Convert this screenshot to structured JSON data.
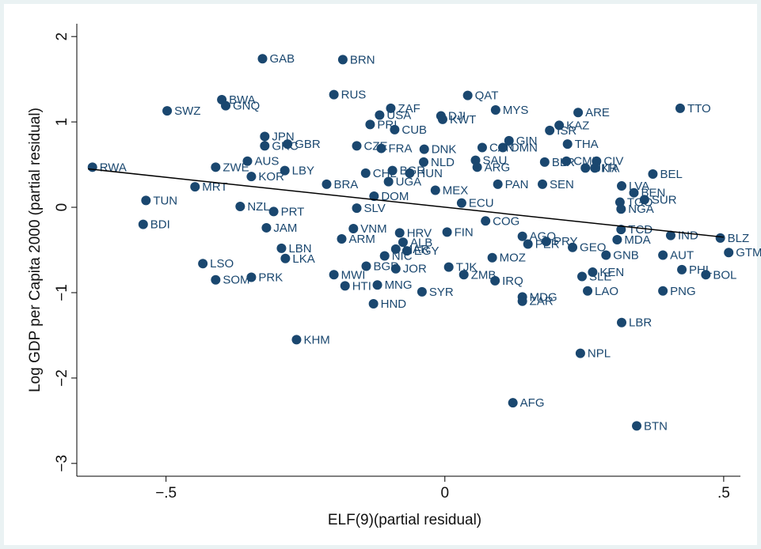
{
  "chart_data": {
    "type": "scatter",
    "xlabel": "ELF(9)(partial residual)",
    "ylabel": "Log GDP per Capita 2000 (partial residual)",
    "xlim": [
      -0.66,
      0.53
    ],
    "ylim": [
      -3.15,
      2.15
    ],
    "xticks": [
      {
        "value": -0.5,
        "label": "−.5"
      },
      0,
      {
        "value": 0.5,
        "label": ".5"
      }
    ],
    "yticks": [
      {
        "value": -3,
        "label": "−3"
      },
      {
        "value": -2,
        "label": "−2"
      },
      {
        "value": -1,
        "label": "−1"
      },
      0,
      1,
      2
    ],
    "color": "#1a476f",
    "labels": [
      "GAB",
      "BRN",
      "RUS",
      "BWA",
      "GNQ",
      "SWZ",
      "ZAF",
      "QAT",
      "DJI",
      "KWT",
      "MYS",
      "ARE",
      "TTO",
      "USA",
      "PRI",
      "CUB",
      "JPN",
      "GRC",
      "GBR",
      "ISR",
      "KAZ",
      "GIN",
      "THA",
      "CZE",
      "FRA",
      "DNK",
      "OMN",
      "CAN",
      "CMR",
      "CIV",
      "AUS",
      "ZWE",
      "RWA",
      "NLD",
      "SAU",
      "ARG",
      "BLR",
      "UKR",
      "ITA",
      "LBY",
      "KOR",
      "BEL",
      "HUN",
      "CHL",
      "BGR",
      "UGA",
      "LVA",
      "BEN",
      "MRT",
      "BRA",
      "PAN",
      "SEN",
      "TUN",
      "SUR",
      "TGO",
      "NZL",
      "PRT",
      "NGA",
      "BDI",
      "JAM",
      "FIN",
      "COG",
      "SLV",
      "TCD",
      "IND",
      "BLZ",
      "GTM",
      "MDA",
      "VNM",
      "HRV",
      "ARM",
      "AGO",
      "PER",
      "PRY",
      "GEO",
      "LBN",
      "ALB",
      "MAR",
      "EGY",
      "AUT",
      "GNB",
      "LSO",
      "LKA",
      "NIC",
      "MOZ",
      "TJK",
      "PHL",
      "BOL",
      "BGD",
      "JOR",
      "ZMB",
      "KEN",
      "SLE",
      "MWI",
      "PRK",
      "SOM",
      "IRQ",
      "HTI",
      "MNG",
      "SYR",
      "LAO",
      "PNG",
      "MDG",
      "ZAR",
      "HND",
      "LBR",
      "KHM",
      "NPL",
      "AFG",
      "BTN",
      "DOM",
      "MEX",
      "ECU"
    ],
    "x": [
      -0.327,
      -0.183,
      -0.199,
      -0.4,
      -0.393,
      -0.498,
      -0.097,
      0.041,
      -0.007,
      -0.004,
      0.091,
      0.239,
      0.422,
      -0.117,
      -0.134,
      -0.09,
      -0.323,
      -0.323,
      -0.282,
      0.188,
      0.205,
      0.115,
      0.22,
      -0.158,
      -0.114,
      -0.037,
      0.104,
      0.067,
      0.218,
      0.272,
      -0.354,
      -0.411,
      -0.632,
      -0.038,
      0.055,
      0.058,
      0.179,
      0.252,
      0.269,
      -0.287,
      -0.347,
      0.373,
      -0.063,
      -0.142,
      -0.094,
      -0.101,
      0.317,
      0.339,
      -0.448,
      -0.212,
      0.095,
      0.175,
      -0.536,
      0.358,
      0.314,
      -0.367,
      -0.307,
      0.316,
      -0.541,
      -0.32,
      0.004,
      0.073,
      -0.158,
      0.316,
      0.405,
      0.494,
      0.509,
      0.309,
      -0.164,
      -0.081,
      -0.185,
      0.139,
      0.149,
      0.182,
      0.229,
      -0.293,
      -0.075,
      -0.088,
      -0.068,
      0.391,
      0.289,
      -0.434,
      -0.286,
      -0.108,
      0.085,
      0.007,
      0.425,
      0.468,
      -0.141,
      -0.088,
      0.034,
      0.265,
      0.246,
      -0.199,
      -0.347,
      -0.411,
      0.09,
      -0.179,
      -0.121,
      -0.041,
      0.256,
      0.391,
      0.139,
      0.139,
      -0.128,
      0.317,
      -0.266,
      0.243,
      0.122,
      0.344,
      -0.127,
      -0.017,
      0.03
    ],
    "y": [
      1.74,
      1.73,
      1.32,
      1.26,
      1.19,
      1.13,
      1.16,
      1.31,
      1.07,
      1.03,
      1.14,
      1.11,
      1.16,
      1.08,
      0.97,
      0.91,
      0.83,
      0.72,
      0.74,
      0.9,
      0.96,
      0.78,
      0.74,
      0.72,
      0.69,
      0.68,
      0.7,
      0.7,
      0.54,
      0.54,
      0.54,
      0.47,
      0.47,
      0.53,
      0.55,
      0.47,
      0.53,
      0.46,
      0.46,
      0.43,
      0.36,
      0.39,
      0.4,
      0.4,
      0.43,
      0.3,
      0.25,
      0.17,
      0.24,
      0.27,
      0.27,
      0.27,
      0.08,
      0.09,
      0.06,
      0.01,
      -0.05,
      -0.02,
      -0.2,
      -0.24,
      -0.29,
      -0.16,
      -0.01,
      -0.26,
      -0.33,
      -0.36,
      -0.53,
      -0.38,
      -0.25,
      -0.3,
      -0.37,
      -0.34,
      -0.43,
      -0.4,
      -0.47,
      -0.48,
      -0.41,
      -0.49,
      -0.51,
      -0.56,
      -0.56,
      -0.66,
      -0.6,
      -0.57,
      -0.59,
      -0.7,
      -0.73,
      -0.79,
      -0.69,
      -0.72,
      -0.79,
      -0.76,
      -0.81,
      -0.79,
      -0.82,
      -0.85,
      -0.86,
      -0.92,
      -0.91,
      -0.99,
      -0.98,
      -0.98,
      -1.05,
      -1.1,
      -1.13,
      -1.35,
      -1.55,
      -1.71,
      -2.29,
      -2.56,
      0.13,
      0.2,
      0.05
    ],
    "fit": {
      "x": [
        -0.64,
        0.5
      ],
      "y": [
        0.45,
        -0.35
      ],
      "color": "#000000"
    }
  }
}
